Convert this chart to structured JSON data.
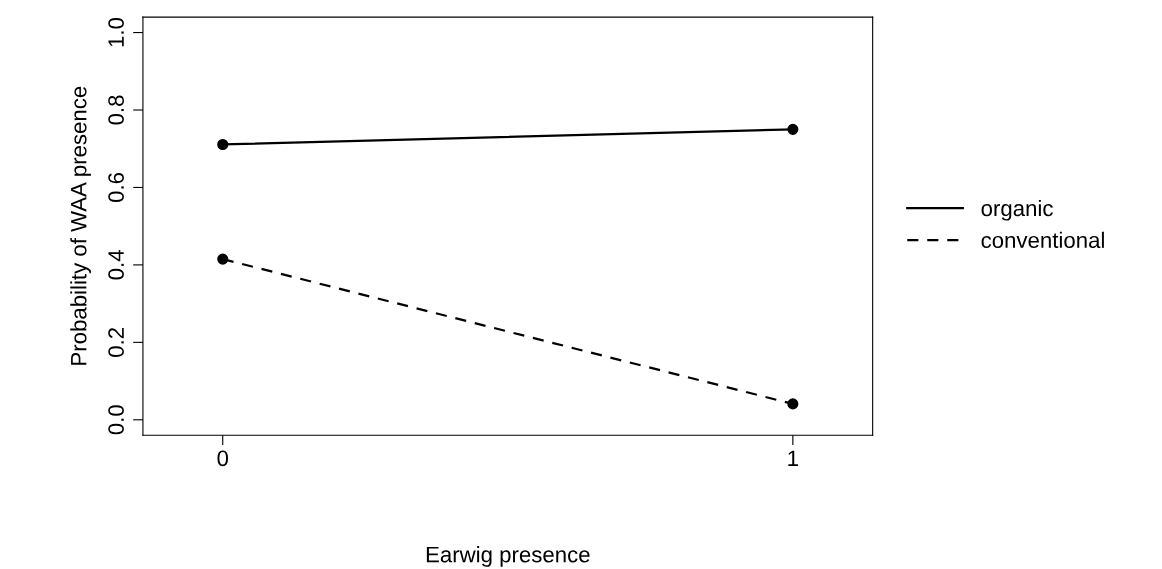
{
  "chart_data": {
    "type": "line",
    "xlabel": "Earwig presence",
    "ylabel": "Probability of WAA presence",
    "x": [
      0,
      1
    ],
    "series": [
      {
        "name": "organic",
        "color": "#000000",
        "values": [
          0.711,
          0.75
        ],
        "line_style": "solid"
      },
      {
        "name": "conventional",
        "color": "#000000",
        "values": [
          0.415,
          0.041
        ],
        "line_style": "dashed"
      }
    ],
    "xlim": [
      -0.14,
      1.14
    ],
    "xticks": [
      0,
      1
    ],
    "ylim": [
      -0.04,
      1.04
    ],
    "yticks": [
      {
        "value": 0,
        "label": "0.0"
      },
      {
        "value": 0.2,
        "label": "0.2"
      },
      {
        "value": 0.4,
        "label": "0.4"
      },
      {
        "value": 0.6,
        "label": "0.6"
      },
      {
        "value": 0.8,
        "label": "0.8"
      },
      {
        "value": 1,
        "label": "1.0"
      }
    ],
    "marker": "circle",
    "grid": false,
    "legend": "right"
  }
}
